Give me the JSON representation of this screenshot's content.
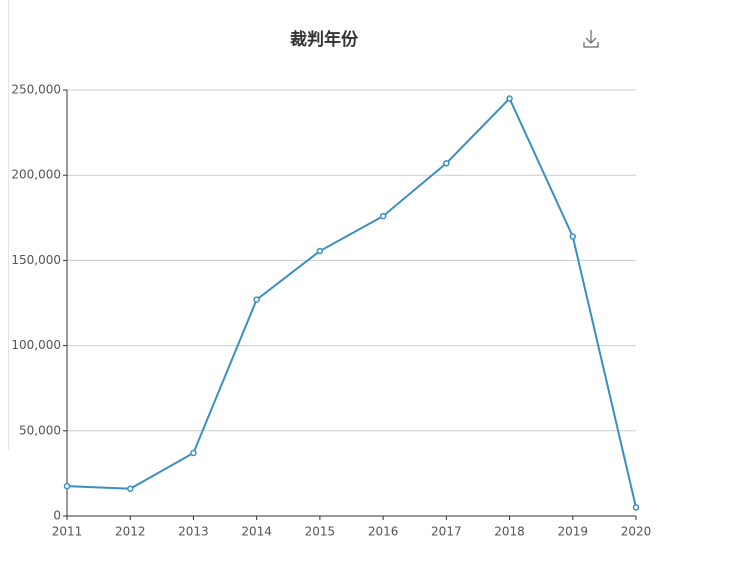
{
  "chart_data": {
    "type": "line",
    "title": "裁判年份",
    "categories": [
      "2011",
      "2012",
      "2013",
      "2014",
      "2015",
      "2016",
      "2017",
      "2018",
      "2019",
      "2020"
    ],
    "values": [
      17500,
      16000,
      37000,
      127000,
      155500,
      176000,
      207000,
      245000,
      164000,
      5000
    ],
    "color": "#3b8ec2",
    "ylim": [
      0,
      250000
    ],
    "yticks": [
      0,
      {
        "value": 50000,
        "label": "50,000"
      },
      {
        "value": 100000,
        "label": "100,000"
      },
      {
        "value": 150000,
        "label": "150,000"
      },
      {
        "value": 200000,
        "label": "200,000"
      },
      {
        "value": 250000,
        "label": "250,000"
      }
    ],
    "grid": true
  }
}
